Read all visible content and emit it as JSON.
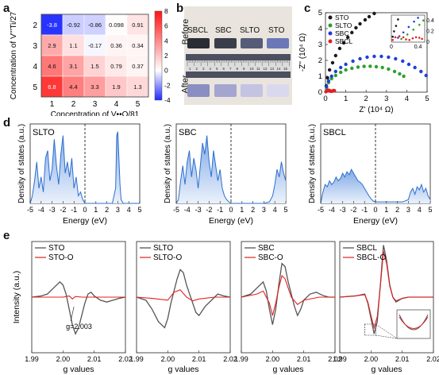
{
  "panels": {
    "a": "a",
    "b": "b",
    "c": "c",
    "d": "d",
    "e": "e"
  },
  "heatmap": {
    "ylabel": "Concentration of V'''Ti/27",
    "xlabel": "Concentration of V••O/81",
    "x_ticks": [
      "1",
      "2",
      "3",
      "4",
      "5"
    ],
    "y_ticks": [
      "2",
      "3",
      "4",
      "5"
    ],
    "cbar_ticks": [
      "8",
      "6",
      "4",
      "2",
      "0",
      "-2",
      "-4"
    ],
    "cells": [
      [
        -3.8,
        -0.92,
        -0.86,
        0.098,
        0.91
      ],
      [
        2.9,
        1.1,
        -0.17,
        0.36,
        0.34
      ],
      [
        4.6,
        3.1,
        1.5,
        0.79,
        0.37
      ],
      [
        6.8,
        4.4,
        3.3,
        1.9,
        1.3
      ]
    ]
  },
  "photo": {
    "labels": [
      "SBCL",
      "SBC",
      "SLTO",
      "STO"
    ],
    "before": "Before",
    "after": "After",
    "ruler": [
      "1",
      "2",
      "3",
      "4",
      "5",
      "6",
      "7",
      "8",
      "9",
      "10",
      "11",
      "12",
      "13",
      "14",
      "15"
    ]
  },
  "chart_data": [
    {
      "type": "scatter",
      "panel": "c",
      "xlabel": "Z' (10⁴ Ω)",
      "ylabel": "-Z'' (10⁴ Ω)",
      "xlim": [
        0,
        5
      ],
      "ylim": [
        0,
        5
      ],
      "x_ticks": [
        "0",
        "1",
        "2",
        "3",
        "4",
        "5"
      ],
      "y_ticks": [
        "0",
        "1",
        "2",
        "3",
        "4",
        "5"
      ],
      "series": [
        {
          "name": "STO",
          "color": "#1a1a1a",
          "x": [
            0.04,
            0.1,
            0.2,
            0.35,
            0.5,
            0.7,
            0.9,
            1.1,
            1.3,
            1.5,
            1.7,
            1.95,
            2.15,
            2.4
          ],
          "y": [
            0.4,
            0.9,
            1.4,
            1.85,
            2.3,
            2.75,
            3.1,
            3.45,
            3.75,
            4.05,
            4.3,
            4.55,
            4.75,
            4.95
          ]
        },
        {
          "name": "SLTO",
          "color": "#2ca02c",
          "x": [
            0.05,
            0.15,
            0.3,
            0.5,
            0.75,
            1.0,
            1.3,
            1.6,
            1.9,
            2.2,
            2.5,
            2.8,
            3.1,
            3.4,
            3.65,
            3.85
          ],
          "y": [
            0.3,
            0.6,
            0.85,
            1.05,
            1.25,
            1.4,
            1.5,
            1.58,
            1.62,
            1.63,
            1.6,
            1.55,
            1.45,
            1.3,
            1.15,
            1.0
          ]
        },
        {
          "name": "SBC",
          "color": "#1f3fd8",
          "x": [
            0.05,
            0.15,
            0.3,
            0.5,
            0.75,
            1.0,
            1.35,
            1.7,
            2.05,
            2.4,
            2.75,
            3.1,
            3.45,
            3.8,
            4.1,
            4.4,
            4.7,
            4.95
          ],
          "y": [
            0.35,
            0.7,
            1.0,
            1.3,
            1.55,
            1.75,
            1.95,
            2.1,
            2.2,
            2.25,
            2.25,
            2.2,
            2.1,
            1.95,
            1.75,
            1.55,
            1.3,
            1.05
          ]
        },
        {
          "name": "SBCL",
          "color": "#e02020",
          "x": [
            0.02,
            0.06,
            0.1,
            0.15,
            0.2,
            0.25,
            0.3,
            0.35,
            0.4,
            0.44
          ],
          "y": [
            0.03,
            0.08,
            0.11,
            0.12,
            0.1,
            0.06,
            0.05,
            0.08,
            0.1,
            0.09
          ]
        }
      ],
      "inset": {
        "x_ticks": [
          "0",
          "0.4"
        ],
        "y_ticks": [
          "0",
          "0.2",
          "0.4"
        ]
      }
    },
    {
      "type": "area",
      "panel": "d",
      "xlabel": "Energy (eV)",
      "ylabel": "Density of states (a.u.)",
      "x_ticks": [
        "-5",
        "-4",
        "-3",
        "-2",
        "-1",
        "0",
        "1",
        "2",
        "3",
        "4",
        "5"
      ],
      "xlim": [
        -5,
        5
      ],
      "plots": [
        {
          "name": "SLTO",
          "x": [
            -5,
            -4.8,
            -4.6,
            -4.4,
            -4.2,
            -4.0,
            -3.8,
            -3.6,
            -3.4,
            -3.2,
            -3.0,
            -2.8,
            -2.6,
            -2.4,
            -2.2,
            -2.0,
            -1.8,
            -1.6,
            -1.4,
            -1.2,
            -1.0,
            -0.8,
            -0.6,
            -0.4,
            -0.2,
            0,
            0.5,
            1,
            1.5,
            2,
            2.5,
            2.8,
            2.9,
            3.0,
            3.1,
            3.2,
            3.3,
            3.5,
            4,
            4.5,
            5
          ],
          "y": [
            0,
            0.1,
            0.3,
            0.55,
            0.2,
            0.35,
            0.15,
            0.6,
            0.7,
            0.3,
            0.45,
            0.85,
            0.5,
            0.25,
            0.65,
            0.9,
            0.4,
            0.55,
            0.35,
            0.6,
            0.2,
            0.35,
            0.1,
            0.15,
            0.05,
            0,
            0,
            0,
            0,
            0,
            0,
            0.2,
            0.9,
            0.95,
            0.6,
            0.25,
            0.05,
            0,
            0,
            0,
            0
          ]
        },
        {
          "name": "SBC",
          "x": [
            -5,
            -4.8,
            -4.6,
            -4.4,
            -4.2,
            -4.0,
            -3.8,
            -3.6,
            -3.4,
            -3.2,
            -3.0,
            -2.8,
            -2.6,
            -2.4,
            -2.2,
            -2.0,
            -1.8,
            -1.6,
            -1.4,
            -1.2,
            -1.0,
            -0.8,
            -0.6,
            -0.4,
            -0.2,
            0,
            1,
            2,
            3,
            3.5,
            3.8,
            4.0,
            4.2,
            4.4,
            4.6,
            4.8,
            5
          ],
          "y": [
            0,
            0.05,
            0.3,
            0.5,
            0.25,
            0.55,
            0.7,
            0.35,
            0.6,
            0.45,
            0.2,
            0.5,
            0.8,
            0.65,
            0.9,
            0.55,
            0.35,
            0.7,
            0.5,
            0.3,
            0.45,
            0.2,
            0.1,
            0.05,
            0.02,
            0,
            0,
            0,
            0,
            0.02,
            0.1,
            0.25,
            0.45,
            0.35,
            0.55,
            0.4,
            0.3
          ]
        },
        {
          "name": "SBCL",
          "x": [
            -5,
            -4.8,
            -4.6,
            -4.4,
            -4.2,
            -4.0,
            -3.8,
            -3.6,
            -3.4,
            -3.2,
            -3.0,
            -2.8,
            -2.6,
            -2.4,
            -2.2,
            -2.0,
            -1.8,
            -1.6,
            -1.4,
            -1.2,
            -1.0,
            -0.8,
            -0.6,
            -0.4,
            -0.2,
            0,
            0.5,
            1,
            1.5,
            2,
            2.5,
            3,
            3.2,
            3.4,
            3.6,
            3.8,
            4,
            4.2,
            4.4,
            4.6,
            4.8,
            5
          ],
          "y": [
            0,
            0.15,
            0.25,
            0.22,
            0.3,
            0.25,
            0.28,
            0.35,
            0.3,
            0.33,
            0.4,
            0.35,
            0.42,
            0.38,
            0.45,
            0.4,
            0.35,
            0.3,
            0.28,
            0.25,
            0.2,
            0.15,
            0.1,
            0.06,
            0.03,
            0.02,
            0.02,
            0.02,
            0.02,
            0.02,
            0.02,
            0.05,
            0.15,
            0.2,
            0.12,
            0.22,
            0.18,
            0.25,
            0.15,
            0.2,
            0.1,
            0.05
          ]
        }
      ]
    },
    {
      "type": "line",
      "panel": "e",
      "xlabel": "g values",
      "ylabel": "Intensity (a.u.)",
      "x_ticks": [
        "1.99",
        "2.00",
        "2.01",
        "2.02"
      ],
      "xlim": [
        1.99,
        2.02
      ],
      "annotation": "g=2.003",
      "plots": [
        {
          "legend": [
            "STO",
            "STO-O"
          ],
          "gray": {
            "x": [
              1.99,
              1.993,
              1.995,
              1.997,
              1.999,
              2.0,
              2.001,
              2.002,
              2.003,
              2.004,
              2.005,
              2.006,
              2.007,
              2.008,
              2.009,
              2.01,
              2.012,
              2.014,
              2.016,
              2.018,
              2.02
            ],
            "y": [
              0.0,
              0.02,
              0.05,
              0.15,
              0.25,
              0.2,
              0.05,
              -0.2,
              -0.45,
              -0.6,
              -0.5,
              -0.3,
              -0.1,
              0.05,
              0.08,
              0.02,
              -0.05,
              -0.08,
              -0.05,
              -0.02,
              0
            ]
          },
          "red": {
            "x": [
              1.99,
              1.995,
              2.0,
              2.002,
              2.003,
              2.004,
              2.006,
              2.01,
              2.015,
              2.02
            ],
            "y": [
              0,
              0,
              0,
              0.02,
              -0.03,
              0.01,
              0,
              0,
              0,
              0
            ]
          }
        },
        {
          "legend": [
            "SLTO",
            "SLTO-O"
          ],
          "gray": {
            "x": [
              1.99,
              1.993,
              1.995,
              1.997,
              1.999,
              2.0,
              2.001,
              2.002,
              2.003,
              2.004,
              2.005,
              2.006,
              2.007,
              2.008,
              2.009,
              2.01,
              2.012,
              2.014,
              2.016,
              2.018,
              2.02
            ],
            "y": [
              0,
              -0.05,
              -0.2,
              -0.4,
              -0.5,
              -0.35,
              -0.1,
              0.1,
              0.3,
              0.45,
              0.4,
              0.2,
              0.05,
              -0.1,
              -0.25,
              -0.3,
              -0.15,
              -0.05,
              0.05,
              0.02,
              0
            ]
          },
          "red": {
            "x": [
              1.99,
              1.995,
              2.0,
              2.002,
              2.004,
              2.006,
              2.008,
              2.01,
              2.015,
              2.02
            ],
            "y": [
              0,
              -0.02,
              -0.05,
              0.08,
              0.12,
              0.0,
              -0.06,
              -0.03,
              0,
              0
            ]
          }
        },
        {
          "legend": [
            "SBC",
            "SBC-O"
          ],
          "gray": {
            "x": [
              1.99,
              1.993,
              1.995,
              1.997,
              1.998,
              1.999,
              2.0,
              2.001,
              2.002,
              2.003,
              2.004,
              2.005,
              2.006,
              2.007,
              2.008,
              2.009,
              2.01,
              2.012,
              2.014,
              2.016,
              2.018,
              2.02
            ],
            "y": [
              0,
              0.05,
              0.15,
              0.25,
              0.1,
              -0.2,
              -0.45,
              -0.2,
              0.2,
              0.55,
              0.5,
              0.25,
              0.05,
              -0.15,
              -0.3,
              -0.2,
              -0.05,
              0.05,
              0.08,
              0.03,
              0,
              0
            ]
          },
          "red": {
            "x": [
              1.99,
              1.995,
              1.997,
              1.999,
              2.0,
              2.001,
              2.002,
              2.003,
              2.004,
              2.005,
              2.006,
              2.008,
              2.01,
              2.015,
              2.02
            ],
            "y": [
              0,
              0.05,
              0.1,
              -0.1,
              -0.3,
              -0.1,
              0.15,
              0.35,
              0.3,
              0.15,
              0,
              -0.12,
              -0.05,
              0,
              0
            ]
          }
        },
        {
          "legend": [
            "SBCL",
            "SBCL-O"
          ],
          "gray": {
            "x": [
              1.99,
              1.995,
              1.998,
              1.999,
              2.0,
              2.001,
              2.002,
              2.003,
              2.004,
              2.005,
              2.006,
              2.007,
              2.008,
              2.009,
              2.01,
              2.012,
              2.015,
              2.02
            ],
            "y": [
              0,
              0.02,
              0.05,
              -0.1,
              -0.35,
              -0.6,
              -0.4,
              0.2,
              0.85,
              0.6,
              0.2,
              0.0,
              -0.08,
              -0.05,
              -0.02,
              0,
              0,
              0
            ]
          },
          "red": {
            "x": [
              1.99,
              1.995,
              1.998,
              1.999,
              2.0,
              2.001,
              2.002,
              2.003,
              2.004,
              2.005,
              2.006,
              2.007,
              2.008,
              2.009,
              2.01,
              2.012,
              2.015,
              2.02
            ],
            "y": [
              0,
              0.02,
              0.04,
              -0.08,
              -0.3,
              -0.5,
              -0.32,
              0.18,
              0.75,
              0.55,
              0.18,
              0.0,
              -0.06,
              -0.04,
              -0.02,
              0,
              0,
              0
            ]
          }
        }
      ]
    }
  ]
}
